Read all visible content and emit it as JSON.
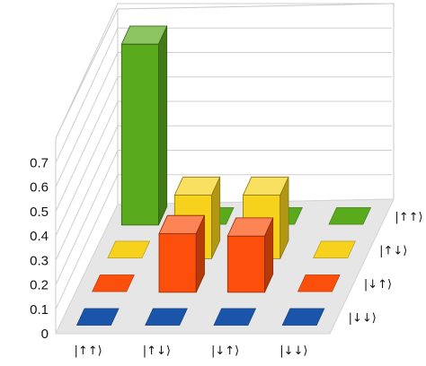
{
  "chart_data": {
    "type": "bar",
    "title": "",
    "xlabel": "",
    "ylabel": "",
    "zlim": [
      0,
      0.8
    ],
    "z_ticks": [
      "0",
      "0.1",
      "0.2",
      "0.3",
      "0.4",
      "0.5",
      "0.6",
      "0.7"
    ],
    "grid": true,
    "columns": [
      "|↑↑⟩",
      "|↑↓⟩",
      "|↓↑⟩",
      "|↓↓⟩"
    ],
    "rows": [
      "|↑↑⟩",
      "|↑↓⟩",
      "|↓↑⟩",
      "|↓↓⟩"
    ],
    "row_colors": {
      "|↑↑⟩": "#5aaa1e",
      "|↑↓⟩": "#f7d21c",
      "|↓↑⟩": "#fc4f0c",
      "|↓↓⟩": "#1a55aa"
    },
    "bars": [
      {
        "row": "|↑↑⟩",
        "col": "|↑↑⟩",
        "value": 0.74
      },
      {
        "row": "|↑↑⟩",
        "col": "|↑↓⟩",
        "value": 0.0
      },
      {
        "row": "|↑↑⟩",
        "col": "|↓↑⟩",
        "value": 0.0
      },
      {
        "row": "|↑↑⟩",
        "col": "|↓↓⟩",
        "value": 0.0
      },
      {
        "row": "|↑↓⟩",
        "col": "|↑↑⟩",
        "value": 0.0
      },
      {
        "row": "|↑↓⟩",
        "col": "|↑↓⟩",
        "value": 0.26
      },
      {
        "row": "|↑↓⟩",
        "col": "|↓↑⟩",
        "value": 0.26
      },
      {
        "row": "|↑↓⟩",
        "col": "|↓↓⟩",
        "value": 0.0
      },
      {
        "row": "|↓↑⟩",
        "col": "|↑↑⟩",
        "value": 0.0
      },
      {
        "row": "|↓↑⟩",
        "col": "|↑↓⟩",
        "value": 0.24
      },
      {
        "row": "|↓↑⟩",
        "col": "|↓↑⟩",
        "value": 0.23
      },
      {
        "row": "|↓↑⟩",
        "col": "|↓↓⟩",
        "value": 0.0
      },
      {
        "row": "|↓↓⟩",
        "col": "|↑↑⟩",
        "value": 0.0
      },
      {
        "row": "|↓↓⟩",
        "col": "|↑↓⟩",
        "value": 0.0
      },
      {
        "row": "|↓↓⟩",
        "col": "|↓↑⟩",
        "value": 0.0
      },
      {
        "row": "|↓↓⟩",
        "col": "|↓↓⟩",
        "value": 0.0
      }
    ]
  }
}
